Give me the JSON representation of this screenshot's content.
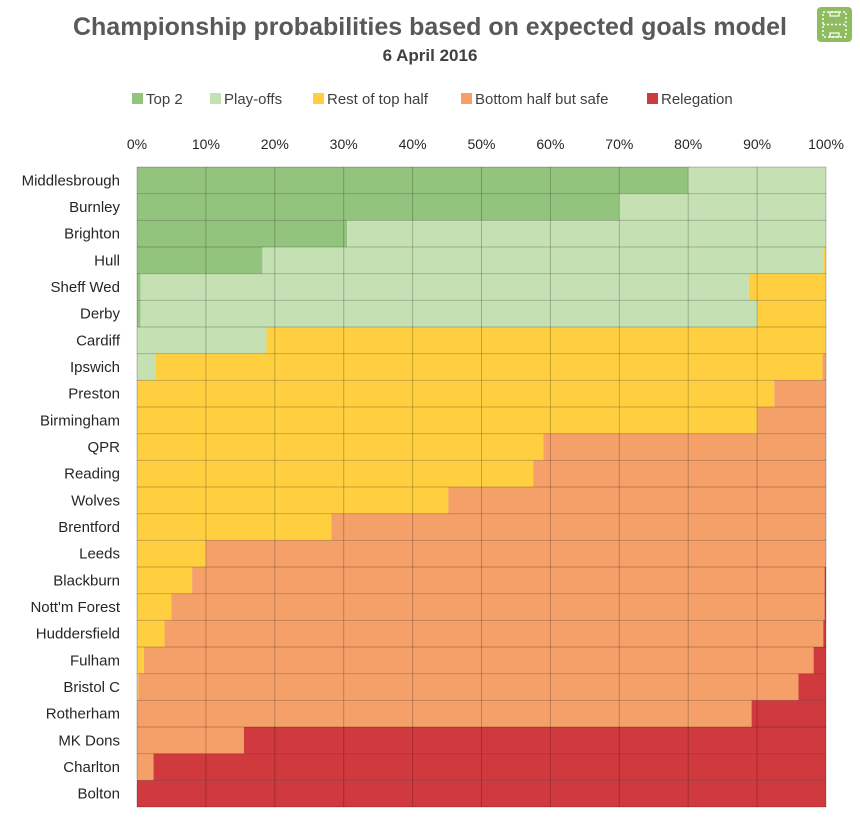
{
  "chart_data": {
    "type": "bar",
    "stacked": true,
    "orientation": "horizontal",
    "title": "Championship probabilities based on expected goals model",
    "subtitle": "6 April 2016",
    "x_ticks": [
      "0%",
      "10%",
      "20%",
      "30%",
      "40%",
      "50%",
      "60%",
      "70%",
      "80%",
      "90%",
      "100%"
    ],
    "xlim": [
      0,
      100
    ],
    "legend_position": "top",
    "grid": true,
    "categories": [
      "Middlesbrough",
      "Burnley",
      "Brighton",
      "Hull",
      "Sheff Wed",
      "Derby",
      "Cardiff",
      "Ipswich",
      "Preston",
      "Birmingham",
      "QPR",
      "Reading",
      "Wolves",
      "Brentford",
      "Leeds",
      "Blackburn",
      "Nott'm Forest",
      "Huddersfield",
      "Fulham",
      "Bristol C",
      "Rotherham",
      "MK Dons",
      "Charlton",
      "Bolton"
    ],
    "series": [
      {
        "name": "Top 2",
        "color": "#93c47d",
        "values": [
          80,
          70,
          30.5,
          18.2,
          0.5,
          0.5,
          0,
          0,
          0,
          0,
          0,
          0,
          0,
          0,
          0,
          0,
          0,
          0,
          0,
          0,
          0,
          0,
          0,
          0
        ]
      },
      {
        "name": "Play-offs",
        "color": "#c5e0b3",
        "values": [
          20,
          30,
          69.5,
          81.5,
          88.3,
          89.5,
          18.8,
          2.7,
          0,
          0,
          0,
          0,
          0,
          0,
          0,
          0,
          0,
          0,
          0,
          0,
          0,
          0,
          0,
          0
        ]
      },
      {
        "name": "Rest of top half",
        "color": "#ffcf3f",
        "values": [
          0,
          0,
          0,
          0.3,
          11.2,
          10,
          81.2,
          96.8,
          92.5,
          90,
          59,
          57.5,
          45.2,
          28.2,
          10,
          8,
          5,
          4,
          1,
          0.2,
          0,
          0,
          0,
          0
        ]
      },
      {
        "name": "Bottom half but safe",
        "color": "#f4a068",
        "values": [
          0,
          0,
          0,
          0,
          0,
          0,
          0,
          0.5,
          7.5,
          10,
          41,
          42.5,
          54.8,
          71.8,
          90,
          91.8,
          94.8,
          95.6,
          97.2,
          95.8,
          89.2,
          15.5,
          2.4,
          0
        ]
      },
      {
        "name": "Relegation",
        "color": "#d0393e",
        "values": [
          0,
          0,
          0,
          0,
          0,
          0,
          0,
          0,
          0,
          0,
          0,
          0,
          0,
          0,
          0,
          0.2,
          0.2,
          0.4,
          1.8,
          4,
          10.8,
          84.5,
          97.6,
          100
        ]
      }
    ]
  },
  "icon": {
    "name": "pitch-icon",
    "color": "#8fbc5f"
  }
}
